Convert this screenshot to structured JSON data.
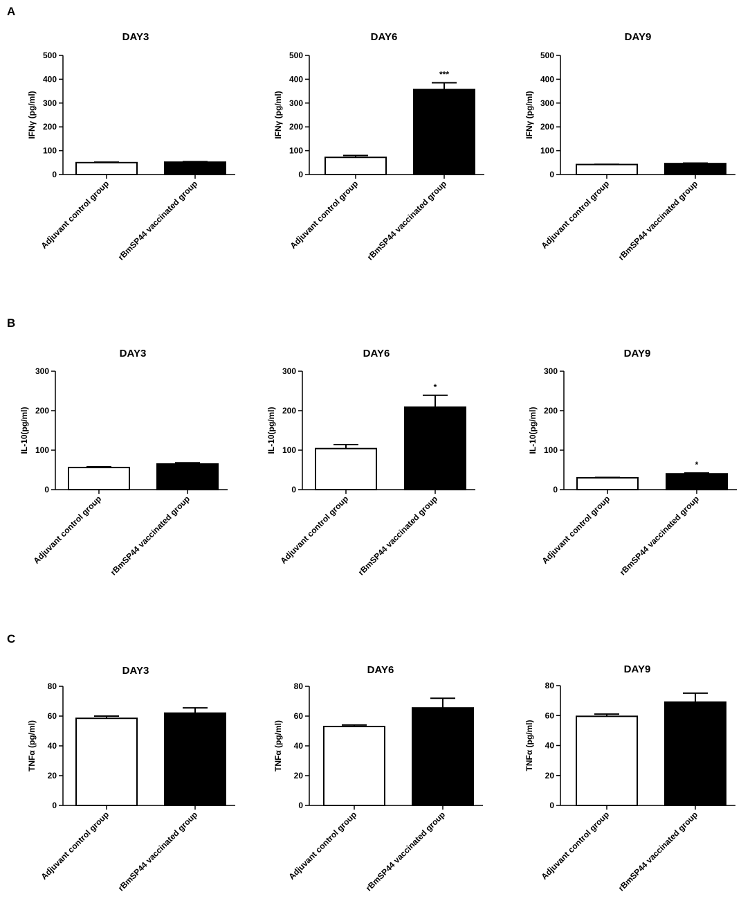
{
  "figure": {
    "panels": [
      {
        "letter": "A"
      },
      {
        "letter": "B"
      },
      {
        "letter": "C"
      }
    ]
  },
  "chart_data": [
    {
      "type": "bar",
      "panel": "A",
      "title": "DAY3",
      "ylabel": "IFNγ (pg/ml)",
      "ylim": [
        0,
        500
      ],
      "yticks": [
        0,
        100,
        200,
        300,
        400,
        500
      ],
      "categories": [
        "Adjuvant control group",
        "rBmSP44 vaccinated group"
      ],
      "values": [
        50,
        52
      ],
      "errors": [
        2,
        2
      ],
      "significance": [
        "",
        ""
      ],
      "fills": [
        "#ffffff",
        "#000000"
      ]
    },
    {
      "type": "bar",
      "panel": "A",
      "title": "DAY6",
      "ylabel": "IFNγ (pg/ml)",
      "ylim": [
        0,
        500
      ],
      "yticks": [
        0,
        100,
        200,
        300,
        400,
        500
      ],
      "categories": [
        "Adjuvant control group",
        "rBmSP44 vaccinated group"
      ],
      "values": [
        72,
        357
      ],
      "errors": [
        8,
        28
      ],
      "significance": [
        "",
        "***"
      ],
      "fills": [
        "#ffffff",
        "#000000"
      ]
    },
    {
      "type": "bar",
      "panel": "A",
      "title": "DAY9",
      "ylabel": "IFNγ (pg/ml)",
      "ylim": [
        0,
        500
      ],
      "yticks": [
        0,
        100,
        200,
        300,
        400,
        500
      ],
      "categories": [
        "Adjuvant control group",
        "rBmSP44 vaccinated group"
      ],
      "values": [
        42,
        46
      ],
      "errors": [
        1,
        2
      ],
      "significance": [
        "",
        ""
      ],
      "fills": [
        "#ffffff",
        "#000000"
      ]
    },
    {
      "type": "bar",
      "panel": "B",
      "title": "DAY3",
      "ylabel": "IL-10(pg/ml)",
      "ylim": [
        0,
        300
      ],
      "yticks": [
        0,
        100,
        200,
        300
      ],
      "categories": [
        "Adjuvant control group",
        "rBmSP44 vaccinated group"
      ],
      "values": [
        56,
        65
      ],
      "errors": [
        2,
        3
      ],
      "significance": [
        "",
        ""
      ],
      "fills": [
        "#ffffff",
        "#000000"
      ]
    },
    {
      "type": "bar",
      "panel": "B",
      "title": "DAY6",
      "ylabel": "IL-10(pg/ml)",
      "ylim": [
        0,
        300
      ],
      "yticks": [
        0,
        100,
        200,
        300
      ],
      "categories": [
        "Adjuvant control group",
        "rBmSP44 vaccinated group"
      ],
      "values": [
        104,
        209
      ],
      "errors": [
        10,
        30
      ],
      "significance": [
        "",
        "*"
      ],
      "fills": [
        "#ffffff",
        "#000000"
      ]
    },
    {
      "type": "bar",
      "panel": "B",
      "title": "DAY9",
      "ylabel": "IL-10(pg/ml)",
      "ylim": [
        0,
        300
      ],
      "yticks": [
        0,
        100,
        200,
        300
      ],
      "categories": [
        "Adjuvant control group",
        "rBmSP44 vaccinated group"
      ],
      "values": [
        30,
        40
      ],
      "errors": [
        1,
        2
      ],
      "significance": [
        "",
        "*"
      ],
      "fills": [
        "#ffffff",
        "#000000"
      ]
    },
    {
      "type": "bar",
      "panel": "C",
      "title": "DAY3",
      "ylabel": "TNFα (pg/ml)",
      "ylim": [
        0,
        80
      ],
      "yticks": [
        0,
        20,
        40,
        60,
        80
      ],
      "categories": [
        "Adjuvant control group",
        "rBmSP44 vaccinated group"
      ],
      "values": [
        58.5,
        62
      ],
      "errors": [
        1.5,
        3.5
      ],
      "significance": [
        "",
        ""
      ],
      "fills": [
        "#ffffff",
        "#000000"
      ]
    },
    {
      "type": "bar",
      "panel": "C",
      "title": "DAY6",
      "ylabel": "TNFα (pg/ml)",
      "ylim": [
        0,
        80
      ],
      "yticks": [
        0,
        20,
        40,
        60,
        80
      ],
      "categories": [
        "Adjuvant control group",
        "rBmSP44 vaccinated group"
      ],
      "values": [
        53,
        65.5
      ],
      "errors": [
        1,
        6.5
      ],
      "significance": [
        "",
        ""
      ],
      "fills": [
        "#ffffff",
        "#000000"
      ]
    },
    {
      "type": "bar",
      "panel": "C",
      "title": "DAY9",
      "ylabel": "TNFα (pg/ml)",
      "ylim": [
        0,
        80
      ],
      "yticks": [
        0,
        20,
        40,
        60,
        80
      ],
      "categories": [
        "Adjuvant control group",
        "rBmSP44 vaccinated group"
      ],
      "values": [
        59.5,
        69
      ],
      "errors": [
        1.5,
        6
      ],
      "significance": [
        "",
        ""
      ],
      "fills": [
        "#ffffff",
        "#000000"
      ]
    }
  ]
}
